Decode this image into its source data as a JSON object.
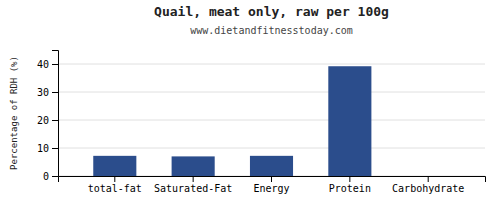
{
  "chart_data": {
    "type": "bar",
    "title": "Quail, meat only, raw per 100g",
    "subtitle": "www.dietandfitnesstoday.com",
    "categories": [
      "total-fat",
      "Saturated-Fat",
      "Energy",
      "Protein",
      "Carbohydrate"
    ],
    "values": [
      7.2,
      7.0,
      7.2,
      39.2,
      0.0
    ],
    "color": "#2b4d8c",
    "ylabel": "Percentage of RDH (%)",
    "ylim": [
      0,
      45
    ],
    "yticks": [
      0,
      10,
      20,
      30,
      40
    ],
    "grid": true
  }
}
